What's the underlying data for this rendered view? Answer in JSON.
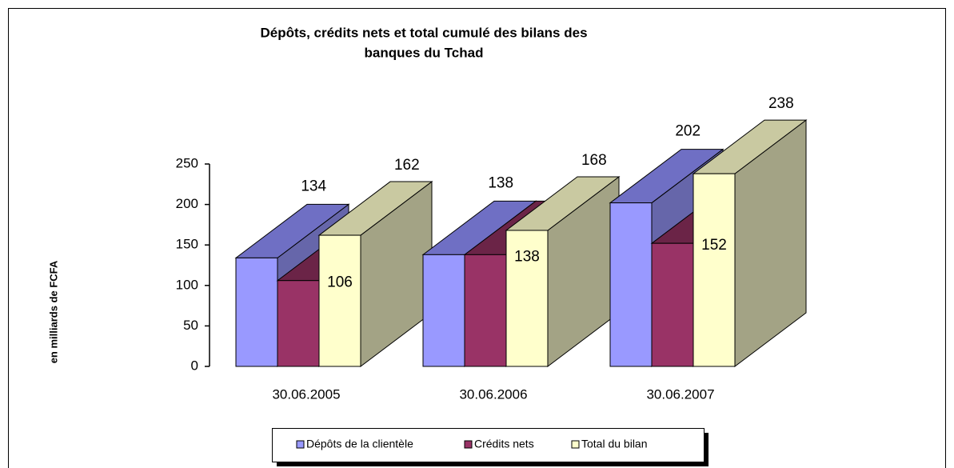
{
  "chart_data": {
    "type": "bar3d",
    "title": [
      "Dépôts, crédits nets et total cumulé des bilans des",
      "banques du Tchad"
    ],
    "ylabel": "en milliards de FCFA",
    "categories": [
      "30.06.2005",
      "30.06.2006",
      "30.06.2007"
    ],
    "series": [
      {
        "name": "Dépôts de la clientèle",
        "color": "#9999ff",
        "values": [
          134,
          138,
          202
        ]
      },
      {
        "name": "Crédits nets",
        "color": "#993366",
        "values": [
          106,
          138,
          152
        ]
      },
      {
        "name": "Total du bilan",
        "color": "#ffffcc",
        "values": [
          162,
          168,
          238
        ]
      }
    ],
    "ylim": [
      0,
      250
    ],
    "yticks": [
      0,
      50,
      100,
      150,
      200,
      250
    ],
    "legend": "bottom"
  }
}
